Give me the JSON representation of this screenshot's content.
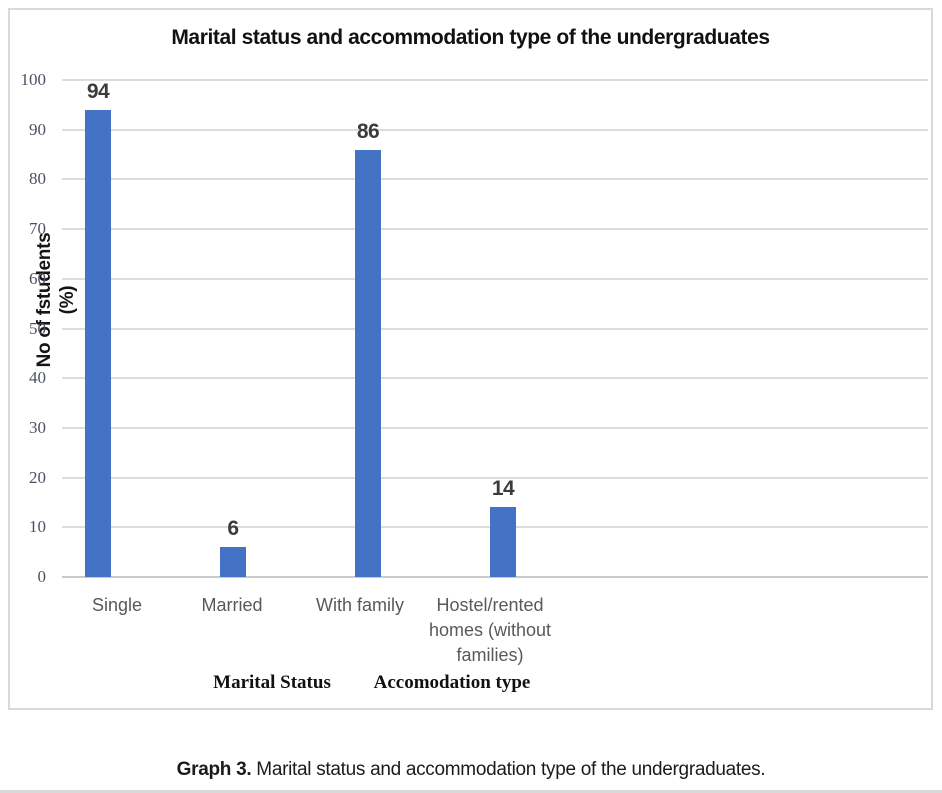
{
  "chart_data": {
    "type": "bar",
    "title": "Marital status and accommodation type of the undergraduates",
    "categories": [
      "Single",
      "Married",
      "With family",
      "Hostel/rented homes (without families)"
    ],
    "values": [
      94,
      6,
      86,
      14
    ],
    "ylabel_line1": "No of fstudents",
    "ylabel_line2": "(%)",
    "xlabel": "",
    "y_ticks": [
      0,
      10,
      20,
      30,
      40,
      50,
      60,
      70,
      80,
      90,
      100
    ],
    "ylim": [
      0,
      100
    ],
    "group_labels": [
      "Marital Status",
      "Accomodation type"
    ],
    "bar_color": "#4472C4",
    "gridlines": "horizontal",
    "legend": "none"
  },
  "caption": {
    "prefix": "Graph 3.",
    "rest": " Marital status and accommodation type of the undergraduates."
  }
}
